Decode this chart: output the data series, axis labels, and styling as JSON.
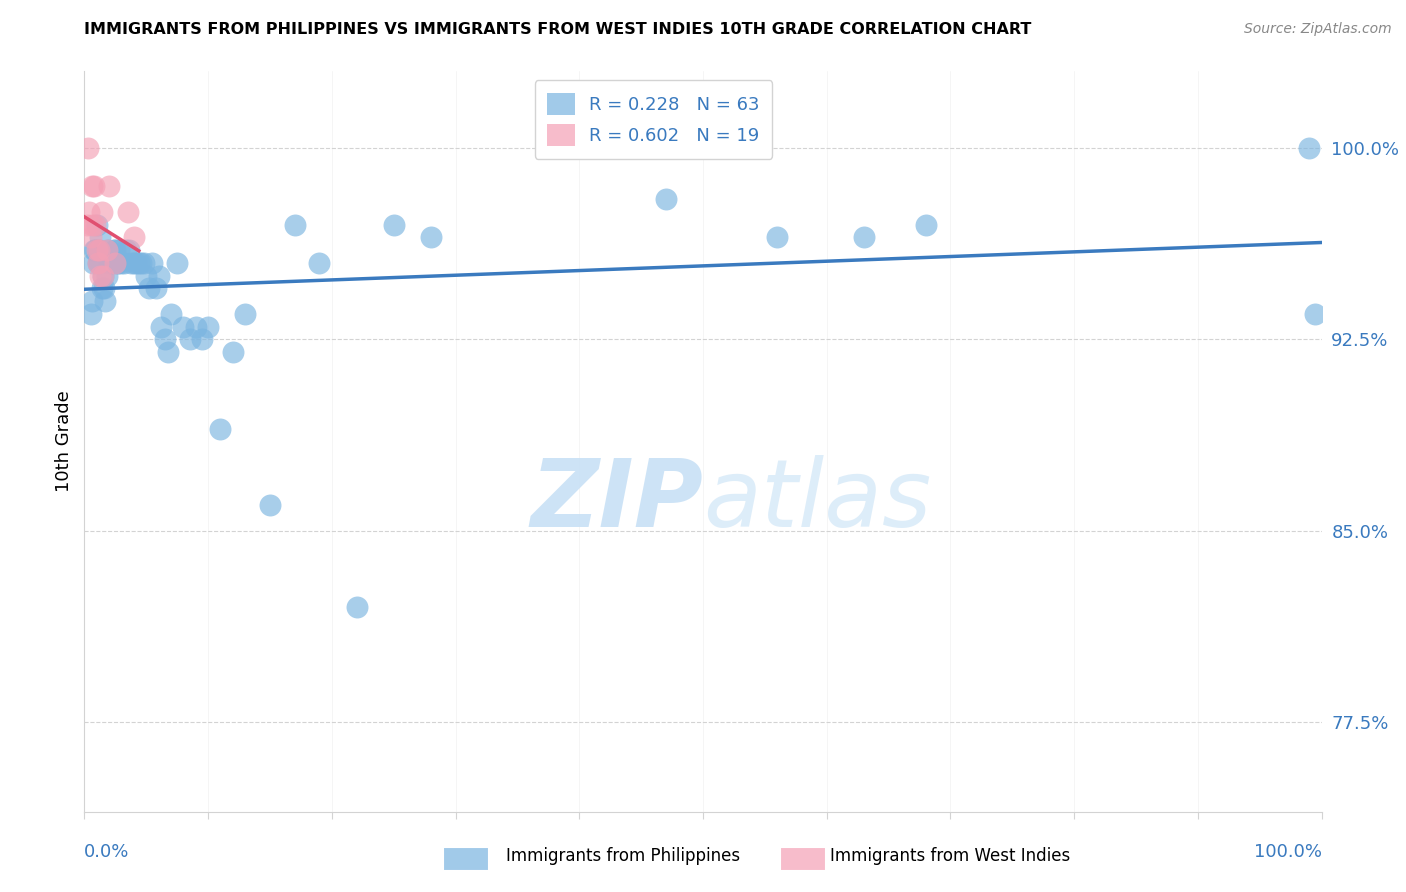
{
  "title": "IMMIGRANTS FROM PHILIPPINES VS IMMIGRANTS FROM WEST INDIES 10TH GRADE CORRELATION CHART",
  "source": "Source: ZipAtlas.com",
  "ylabel": "10th Grade",
  "ytick_labels": [
    "100.0%",
    "92.5%",
    "85.0%",
    "77.5%"
  ],
  "ytick_values": [
    1.0,
    0.925,
    0.85,
    0.775
  ],
  "legend_label1": "Immigrants from Philippines",
  "legend_label2": "Immigrants from West Indies",
  "R1": 0.228,
  "N1": 63,
  "R2": 0.602,
  "N2": 19,
  "color_blue": "#7ab4e0",
  "color_pink": "#f4a0b5",
  "color_blue_line": "#3a7abf",
  "color_pink_line": "#e05070",
  "color_blue_text": "#3a7abf",
  "watermark_color": "#daeaf7",
  "blue_points_x": [
    0.005,
    0.006,
    0.007,
    0.008,
    0.009,
    0.01,
    0.011,
    0.012,
    0.012,
    0.013,
    0.014,
    0.015,
    0.016,
    0.017,
    0.018,
    0.019,
    0.02,
    0.022,
    0.024,
    0.025,
    0.026,
    0.027,
    0.028,
    0.03,
    0.032,
    0.034,
    0.036,
    0.038,
    0.04,
    0.042,
    0.044,
    0.046,
    0.048,
    0.05,
    0.052,
    0.055,
    0.058,
    0.06,
    0.062,
    0.065,
    0.068,
    0.07,
    0.075,
    0.08,
    0.085,
    0.09,
    0.095,
    0.1,
    0.11,
    0.12,
    0.13,
    0.15,
    0.17,
    0.19,
    0.22,
    0.25,
    0.28,
    0.47,
    0.56,
    0.63,
    0.68,
    0.99,
    0.995
  ],
  "blue_points_y": [
    0.935,
    0.94,
    0.955,
    0.96,
    0.96,
    0.97,
    0.955,
    0.955,
    0.96,
    0.965,
    0.945,
    0.95,
    0.945,
    0.94,
    0.95,
    0.96,
    0.955,
    0.955,
    0.96,
    0.96,
    0.955,
    0.955,
    0.96,
    0.955,
    0.955,
    0.96,
    0.96,
    0.955,
    0.955,
    0.955,
    0.955,
    0.955,
    0.955,
    0.95,
    0.945,
    0.955,
    0.945,
    0.95,
    0.93,
    0.925,
    0.92,
    0.935,
    0.955,
    0.93,
    0.925,
    0.93,
    0.925,
    0.93,
    0.89,
    0.92,
    0.935,
    0.86,
    0.97,
    0.955,
    0.82,
    0.97,
    0.965,
    0.98,
    0.965,
    0.965,
    0.97,
    1.0,
    0.935
  ],
  "pink_points_x": [
    0.002,
    0.003,
    0.004,
    0.005,
    0.006,
    0.006,
    0.008,
    0.009,
    0.01,
    0.011,
    0.012,
    0.013,
    0.014,
    0.015,
    0.018,
    0.02,
    0.025,
    0.035,
    0.04
  ],
  "pink_points_y": [
    0.97,
    1.0,
    0.975,
    0.965,
    0.97,
    0.985,
    0.985,
    0.97,
    0.96,
    0.955,
    0.96,
    0.95,
    0.975,
    0.95,
    0.96,
    0.985,
    0.955,
    0.975,
    0.965
  ]
}
